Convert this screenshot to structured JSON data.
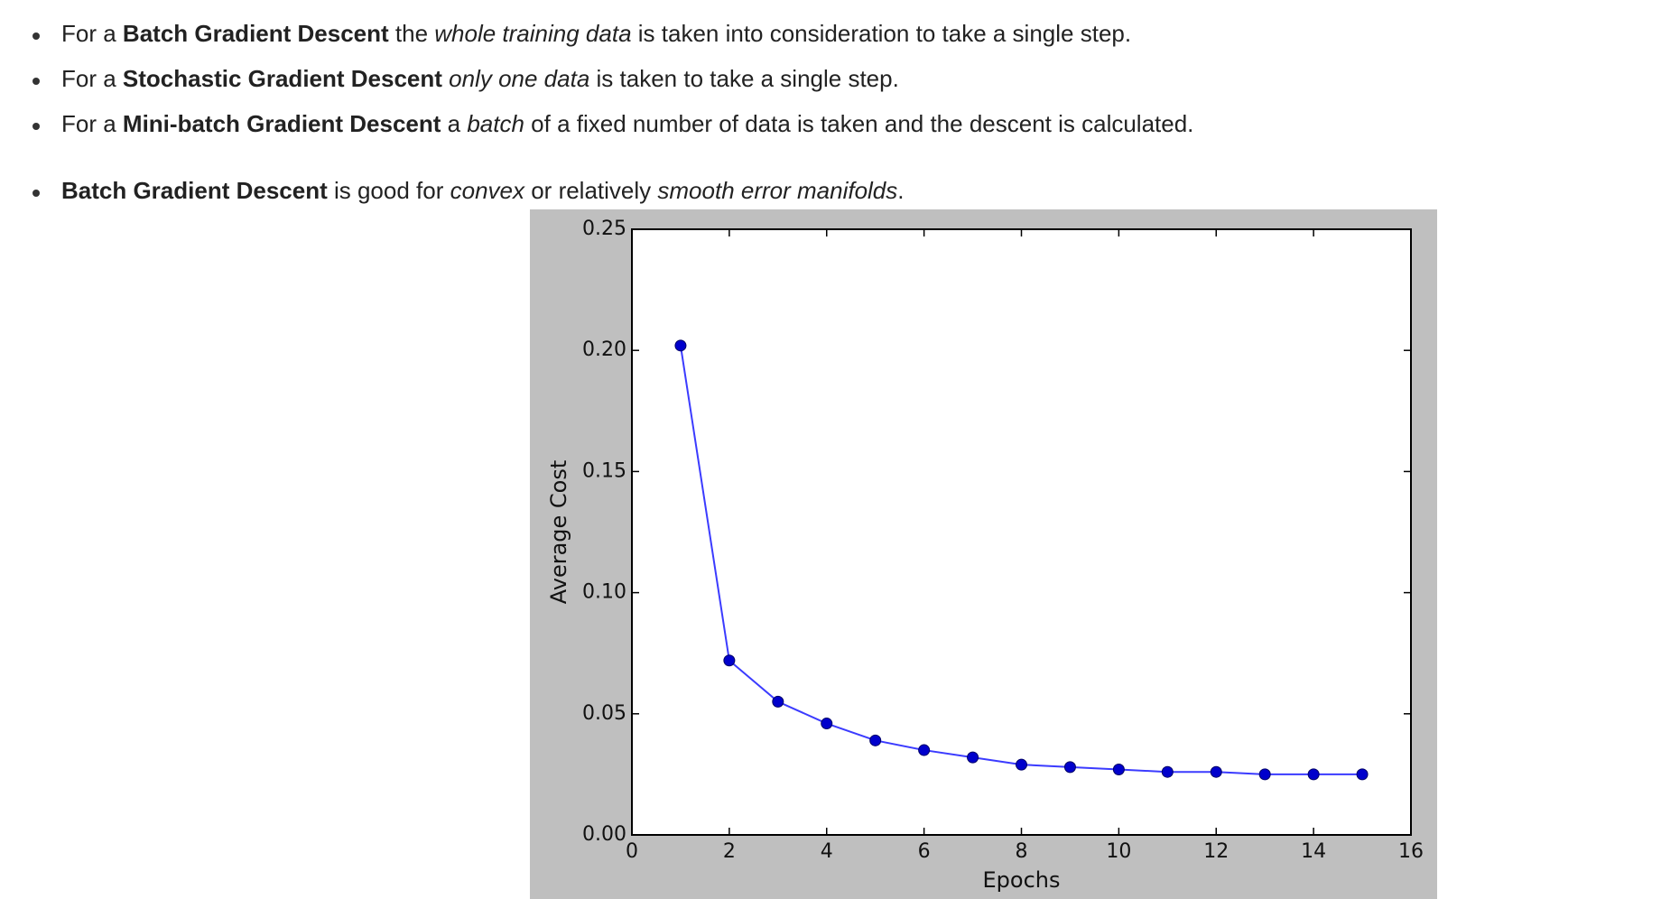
{
  "bullets": [
    {
      "parts": [
        {
          "t": "For a ",
          "s": ""
        },
        {
          "t": "Batch Gradient Descent",
          "s": "b"
        },
        {
          "t": " the ",
          "s": ""
        },
        {
          "t": "whole training data",
          "s": "i"
        },
        {
          "t": " is taken into consideration to take a single step.",
          "s": ""
        }
      ]
    },
    {
      "parts": [
        {
          "t": "For a ",
          "s": ""
        },
        {
          "t": "Stochastic Gradient Descent",
          "s": "b"
        },
        {
          "t": " ",
          "s": ""
        },
        {
          "t": "only one data",
          "s": "i"
        },
        {
          "t": " is taken to take a single step.",
          "s": ""
        }
      ]
    },
    {
      "parts": [
        {
          "t": "For a ",
          "s": ""
        },
        {
          "t": "Mini-batch Gradient Descent",
          "s": "b"
        },
        {
          "t": " a ",
          "s": ""
        },
        {
          "t": "batch",
          "s": "i"
        },
        {
          "t": " of a fixed number of data is taken and the descent is calculated.",
          "s": ""
        }
      ]
    },
    {
      "parts": [
        {
          "t": "Batch Gradient Descent",
          "s": "b"
        },
        {
          "t": " is good for ",
          "s": ""
        },
        {
          "t": "convex",
          "s": "i"
        },
        {
          "t": " or relatively ",
          "s": ""
        },
        {
          "t": "smooth error manifolds",
          "s": "i"
        },
        {
          "t": ".",
          "s": ""
        }
      ]
    }
  ],
  "chart_data": {
    "type": "line",
    "title": "",
    "xlabel": "Epochs",
    "ylabel": "Average Cost",
    "xlim": [
      0,
      16
    ],
    "ylim": [
      0.0,
      0.25
    ],
    "xticks": [
      "0",
      "2",
      "4",
      "6",
      "8",
      "10",
      "12",
      "14",
      "16"
    ],
    "yticks": [
      "0.00",
      "0.05",
      "0.10",
      "0.15",
      "0.20",
      "0.25"
    ],
    "grid": false,
    "legend": "none",
    "line_color": "#3b3bff",
    "marker_color": "#0000cc",
    "x": [
      1,
      2,
      3,
      4,
      5,
      6,
      7,
      8,
      9,
      10,
      11,
      12,
      13,
      14,
      15
    ],
    "y": [
      0.202,
      0.072,
      0.055,
      0.046,
      0.039,
      0.035,
      0.032,
      0.029,
      0.028,
      0.027,
      0.026,
      0.026,
      0.025,
      0.025,
      0.025
    ]
  }
}
